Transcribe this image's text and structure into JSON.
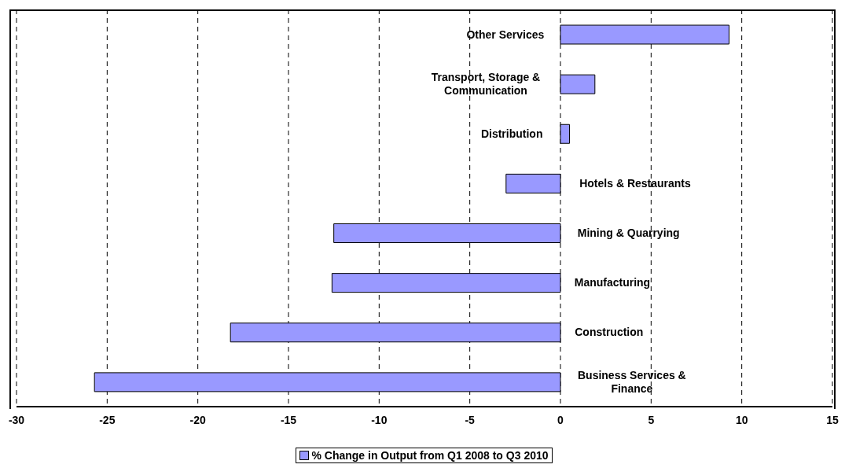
{
  "chart_data": {
    "type": "bar",
    "orientation": "horizontal",
    "categories": [
      "Other Services",
      "Transport, Storage & Communication",
      "Distribution",
      "Hotels & Restaurants",
      "Mining & Quarrying",
      "Manufacturing",
      "Construction",
      "Business Services & Finance"
    ],
    "series": [
      {
        "name": "% Change in Output from Q1 2008 to Q3 2010",
        "color": "#9999ff",
        "values": [
          9.3,
          1.9,
          0.5,
          -3.0,
          -12.5,
          -12.6,
          -18.2,
          -25.7
        ]
      }
    ],
    "xlim": [
      -30,
      15
    ],
    "xticks": [
      -30,
      -25,
      -20,
      -15,
      -10,
      -5,
      0,
      5,
      10,
      15
    ],
    "grid": "x",
    "legend": "bottom"
  }
}
